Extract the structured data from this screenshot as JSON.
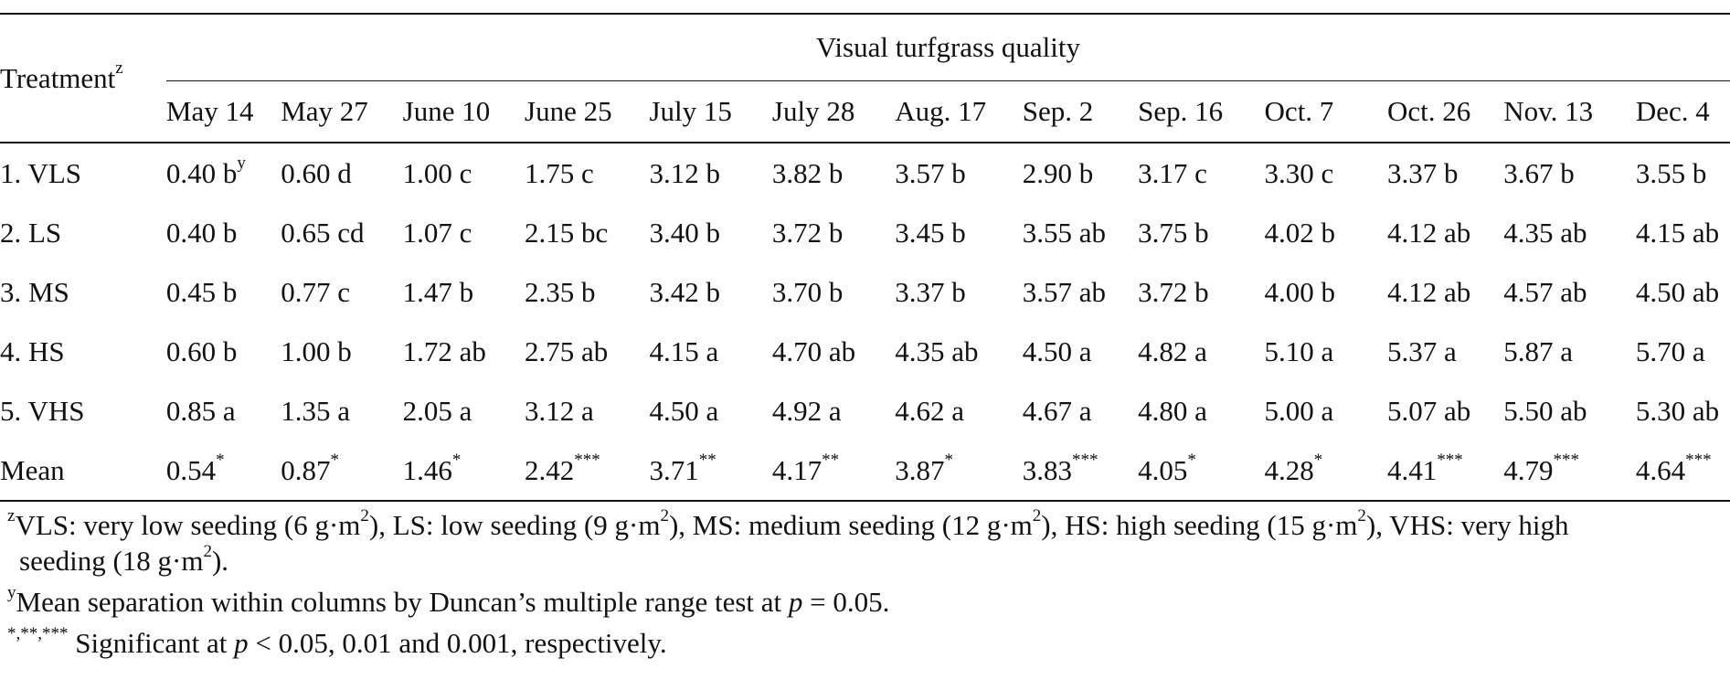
{
  "table": {
    "treatment_header": "Treatment",
    "treatment_header_sup": "z",
    "group_header": "Visual turfgrass quality",
    "dates": [
      "May 14",
      "May 27",
      "June 10",
      "June 25",
      "July 15",
      "July 28",
      "Aug. 17",
      "Sep. 2",
      "Sep. 16",
      "Oct. 7",
      "Oct. 26",
      "Nov. 13",
      "Dec. 4"
    ],
    "rows": [
      {
        "name": "1. VLS",
        "cells": [
          {
            "v": "0.40 b",
            "s": "y"
          },
          {
            "v": "0.60 d"
          },
          {
            "v": "1.00 c"
          },
          {
            "v": "1.75 c"
          },
          {
            "v": "3.12 b"
          },
          {
            "v": "3.82 b"
          },
          {
            "v": "3.57 b"
          },
          {
            "v": "2.90 b"
          },
          {
            "v": "3.17 c"
          },
          {
            "v": "3.30 c"
          },
          {
            "v": "3.37 b"
          },
          {
            "v": "3.67 b"
          },
          {
            "v": "3.55 b"
          }
        ]
      },
      {
        "name": "2. LS",
        "cells": [
          {
            "v": "0.40 b"
          },
          {
            "v": "0.65 cd"
          },
          {
            "v": "1.07 c"
          },
          {
            "v": "2.15 bc"
          },
          {
            "v": "3.40 b"
          },
          {
            "v": "3.72 b"
          },
          {
            "v": "3.45 b"
          },
          {
            "v": "3.55 ab"
          },
          {
            "v": "3.75 b"
          },
          {
            "v": "4.02 b"
          },
          {
            "v": "4.12 ab"
          },
          {
            "v": "4.35 ab"
          },
          {
            "v": "4.15 ab"
          }
        ]
      },
      {
        "name": "3. MS",
        "cells": [
          {
            "v": "0.45 b"
          },
          {
            "v": "0.77 c"
          },
          {
            "v": "1.47 b"
          },
          {
            "v": "2.35 b"
          },
          {
            "v": "3.42 b"
          },
          {
            "v": "3.70 b"
          },
          {
            "v": "3.37 b"
          },
          {
            "v": "3.57 ab"
          },
          {
            "v": "3.72 b"
          },
          {
            "v": "4.00 b"
          },
          {
            "v": "4.12 ab"
          },
          {
            "v": "4.57 ab"
          },
          {
            "v": "4.50 ab"
          }
        ]
      },
      {
        "name": "4. HS",
        "cells": [
          {
            "v": "0.60 b"
          },
          {
            "v": "1.00 b"
          },
          {
            "v": "1.72 ab"
          },
          {
            "v": "2.75 ab"
          },
          {
            "v": "4.15 a"
          },
          {
            "v": "4.70 ab"
          },
          {
            "v": "4.35 ab"
          },
          {
            "v": "4.50 a"
          },
          {
            "v": "4.82 a"
          },
          {
            "v": "5.10 a"
          },
          {
            "v": "5.37 a"
          },
          {
            "v": "5.87 a"
          },
          {
            "v": "5.70 a"
          }
        ]
      },
      {
        "name": "5. VHS",
        "cells": [
          {
            "v": "0.85 a"
          },
          {
            "v": "1.35 a"
          },
          {
            "v": "2.05 a"
          },
          {
            "v": "3.12 a"
          },
          {
            "v": "4.50 a"
          },
          {
            "v": "4.92 a"
          },
          {
            "v": "4.62 a"
          },
          {
            "v": "4.67 a"
          },
          {
            "v": "4.80 a"
          },
          {
            "v": "5.00 a"
          },
          {
            "v": "5.07 ab"
          },
          {
            "v": "5.50 ab"
          },
          {
            "v": "5.30 ab"
          }
        ]
      },
      {
        "name": "Mean",
        "cells": [
          {
            "v": "0.54",
            "s": "*"
          },
          {
            "v": "0.87",
            "s": "*"
          },
          {
            "v": "1.46",
            "s": "*"
          },
          {
            "v": "2.42",
            "s": "***"
          },
          {
            "v": "3.71",
            "s": "**"
          },
          {
            "v": "4.17",
            "s": "**"
          },
          {
            "v": "3.87",
            "s": "*"
          },
          {
            "v": "3.83",
            "s": "***"
          },
          {
            "v": "4.05",
            "s": "*"
          },
          {
            "v": "4.28",
            "s": "*"
          },
          {
            "v": "4.41",
            "s": "***"
          },
          {
            "v": "4.79",
            "s": "***"
          },
          {
            "v": "4.64",
            "s": "***"
          }
        ]
      }
    ]
  },
  "footnotes": {
    "z": {
      "mark": "z",
      "parts": [
        {
          "t": "VLS: very low seeding (6 g·m"
        },
        {
          "sup": "2"
        },
        {
          "t": "), LS: low seeding (9 g·m"
        },
        {
          "sup": "2"
        },
        {
          "t": "), MS: medium seeding (12 g·m"
        },
        {
          "sup": "2"
        },
        {
          "t": "), HS: high seeding (15 g·m"
        },
        {
          "sup": "2"
        },
        {
          "t": "), VHS: very high"
        }
      ],
      "line2_parts": [
        {
          "t": "seeding (18 g·m"
        },
        {
          "sup": "2"
        },
        {
          "t": ")."
        }
      ]
    },
    "y": {
      "mark": "y",
      "text_before": "Mean separation within columns by Duncan’s multiple range test at ",
      "italic": "p",
      "text_after": " = 0.05."
    },
    "sig": {
      "mark": "*,**,***",
      "text_before": " Significant at ",
      "italic": "p",
      "text_after": " < 0.05, 0.01 and 0.001, respectively."
    }
  }
}
